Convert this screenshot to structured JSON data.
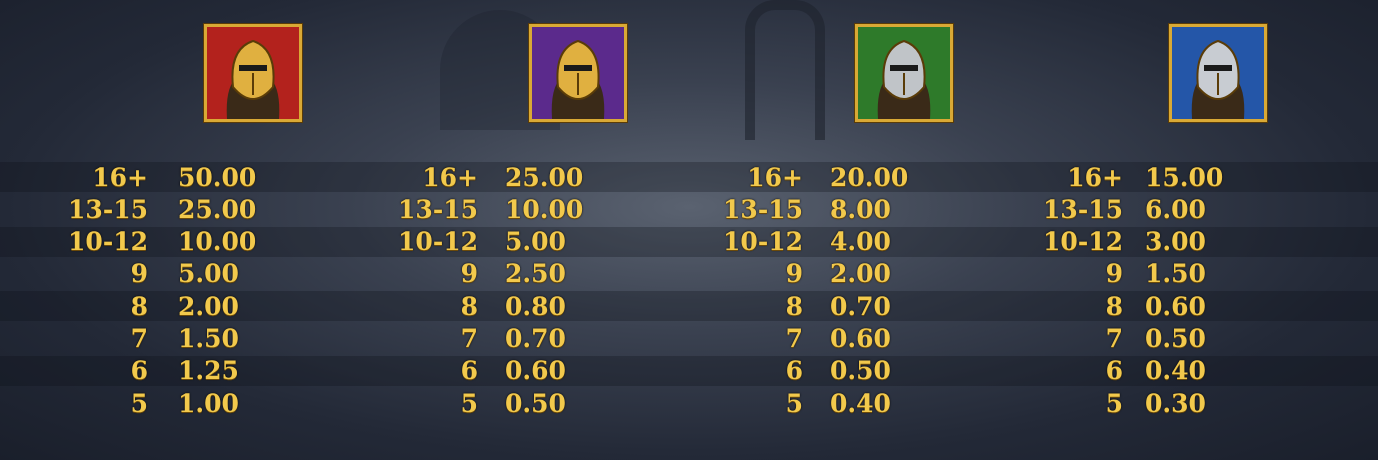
{
  "symbols": [
    {
      "name": "red-knight",
      "color": "#b3221d",
      "accent": "#e0b040",
      "pays": [
        [
          "16+",
          "50.00"
        ],
        [
          "13-15",
          "25.00"
        ],
        [
          "10-12",
          "10.00"
        ],
        [
          "9",
          "5.00"
        ],
        [
          "8",
          "2.00"
        ],
        [
          "7",
          "1.50"
        ],
        [
          "6",
          "1.25"
        ],
        [
          "5",
          "1.00"
        ]
      ]
    },
    {
      "name": "purple-knight",
      "color": "#5b2a8c",
      "accent": "#e0b040",
      "pays": [
        [
          "16+",
          "25.00"
        ],
        [
          "13-15",
          "10.00"
        ],
        [
          "10-12",
          "5.00"
        ],
        [
          "9",
          "2.50"
        ],
        [
          "8",
          "0.80"
        ],
        [
          "7",
          "0.70"
        ],
        [
          "6",
          "0.60"
        ],
        [
          "5",
          "0.50"
        ]
      ]
    },
    {
      "name": "green-knight",
      "color": "#2e7a2a",
      "accent": "#c0c4c8",
      "pays": [
        [
          "16+",
          "20.00"
        ],
        [
          "13-15",
          "8.00"
        ],
        [
          "10-12",
          "4.00"
        ],
        [
          "9",
          "2.00"
        ],
        [
          "8",
          "0.70"
        ],
        [
          "7",
          "0.60"
        ],
        [
          "6",
          "0.50"
        ],
        [
          "5",
          "0.40"
        ]
      ]
    },
    {
      "name": "blue-knight",
      "color": "#2456a8",
      "accent": "#c8ccd2",
      "pays": [
        [
          "16+",
          "15.00"
        ],
        [
          "13-15",
          "6.00"
        ],
        [
          "10-12",
          "3.00"
        ],
        [
          "9",
          "1.50"
        ],
        [
          "8",
          "0.60"
        ],
        [
          "7",
          "0.50"
        ],
        [
          "6",
          "0.40"
        ],
        [
          "5",
          "0.30"
        ]
      ]
    }
  ]
}
